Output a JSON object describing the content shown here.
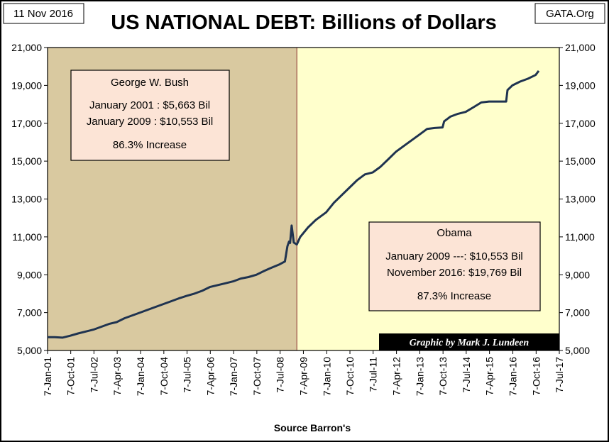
{
  "date_label": "11 Nov 2016",
  "source_label": "GATA.Org",
  "footer": "Source Barron's",
  "credit": "Graphic by Mark J. Lundeen",
  "colors": {
    "bush_region": "#d9c9a0",
    "obama_region": "#ffffcc",
    "line": "#1f3350",
    "box_fill": "#fce4d6",
    "credit_bg": "#000000",
    "credit_text": "#ffffff",
    "divider": "#8b2f2f"
  },
  "bush_box": {
    "title": "George W. Bush",
    "line1": "January 2001 :  $5,663 Bil",
    "line2": "January 2009 : $10,553 Bil",
    "line3": "86.3% Increase"
  },
  "obama_box": {
    "title": "Obama",
    "line1": "January 2009 ---: $10,553 Bil",
    "line2": "November 2016: $19,769 Bil",
    "line3": "87.3% Increase"
  },
  "chart_data": {
    "type": "line",
    "title": "US NATIONAL DEBT: Billions of Dollars",
    "xlabel": "",
    "ylabel": "",
    "ylim": [
      5000,
      21000
    ],
    "y_ticks": [
      5000,
      7000,
      9000,
      11000,
      13000,
      15000,
      17000,
      19000,
      21000
    ],
    "y_tick_labels": [
      "5,000",
      "7,000",
      "9,000",
      "11,000",
      "13,000",
      "15,000",
      "17,000",
      "19,000",
      "21,000"
    ],
    "x_range": [
      "2001-01-07",
      "2017-07-07"
    ],
    "x_ticks": [
      "2001-01-07",
      "2001-10-07",
      "2002-07-07",
      "2003-04-07",
      "2004-01-07",
      "2004-10-07",
      "2005-07-07",
      "2006-04-07",
      "2007-01-07",
      "2007-10-07",
      "2008-07-07",
      "2009-04-07",
      "2010-01-07",
      "2010-10-07",
      "2011-07-07",
      "2012-04-07",
      "2013-01-07",
      "2013-10-07",
      "2014-07-07",
      "2015-04-07",
      "2016-01-07",
      "2016-10-07",
      "2017-07-07"
    ],
    "x_tick_labels": [
      "7-Jan-01",
      "7-Oct-01",
      "7-Jul-02",
      "7-Apr-03",
      "7-Jan-04",
      "7-Oct-04",
      "7-Jul-05",
      "7-Apr-06",
      "7-Jan-07",
      "7-Oct-07",
      "7-Jul-08",
      "7-Apr-09",
      "7-Jan-10",
      "7-Oct-10",
      "7-Jul-11",
      "7-Apr-12",
      "7-Jan-13",
      "7-Oct-13",
      "7-Jul-14",
      "7-Apr-15",
      "7-Jan-16",
      "7-Oct-16",
      "7-Jul-17"
    ],
    "regions": [
      {
        "name": "George W. Bush",
        "from": "2001-01-07",
        "to": "2009-01-20"
      },
      {
        "name": "Obama",
        "from": "2009-01-20",
        "to": "2017-07-07"
      }
    ],
    "series": [
      {
        "x": [
          "2001-01-07",
          "2001-04-01",
          "2001-07-01",
          "2001-10-01",
          "2002-01-01",
          "2002-04-01",
          "2002-07-01",
          "2002-10-01",
          "2003-01-01",
          "2003-04-01",
          "2003-07-01",
          "2003-10-01",
          "2004-01-01",
          "2004-04-01",
          "2004-07-01",
          "2004-10-01",
          "2005-01-01",
          "2005-04-01",
          "2005-07-01",
          "2005-10-01",
          "2006-01-01",
          "2006-04-01",
          "2006-07-01",
          "2006-10-01",
          "2007-01-01",
          "2007-04-01",
          "2007-07-01",
          "2007-10-01",
          "2008-01-01",
          "2008-04-01",
          "2008-07-01",
          "2008-09-01",
          "2008-10-01",
          "2008-10-20",
          "2008-11-01",
          "2008-11-20",
          "2008-12-15",
          "2009-01-20",
          "2009-03-01",
          "2009-06-01",
          "2009-09-01",
          "2010-01-01",
          "2010-04-01",
          "2010-07-01",
          "2010-10-01",
          "2011-01-01",
          "2011-04-01",
          "2011-07-01",
          "2011-10-01",
          "2012-01-01",
          "2012-04-01",
          "2012-07-01",
          "2012-10-01",
          "2013-01-01",
          "2013-04-01",
          "2013-07-01",
          "2013-10-01",
          "2013-10-20",
          "2014-01-01",
          "2014-04-01",
          "2014-07-01",
          "2014-10-01",
          "2015-01-01",
          "2015-04-01",
          "2015-07-01",
          "2015-10-20",
          "2015-11-05",
          "2016-01-01",
          "2016-04-01",
          "2016-07-01",
          "2016-10-01",
          "2016-11-07"
        ],
        "values": [
          5700,
          5700,
          5680,
          5780,
          5900,
          6000,
          6100,
          6250,
          6400,
          6500,
          6700,
          6850,
          7000,
          7150,
          7300,
          7450,
          7600,
          7750,
          7880,
          8000,
          8150,
          8350,
          8450,
          8550,
          8650,
          8800,
          8880,
          9000,
          9200,
          9380,
          9550,
          9700,
          10500,
          10750,
          10680,
          11600,
          10700,
          10600,
          11000,
          11500,
          11900,
          12300,
          12800,
          13200,
          13600,
          14000,
          14300,
          14400,
          14700,
          15100,
          15500,
          15800,
          16100,
          16400,
          16700,
          16750,
          16780,
          17100,
          17350,
          17500,
          17600,
          17850,
          18100,
          18150,
          18150,
          18150,
          18750,
          19000,
          19200,
          19350,
          19550,
          19769
        ]
      }
    ]
  }
}
